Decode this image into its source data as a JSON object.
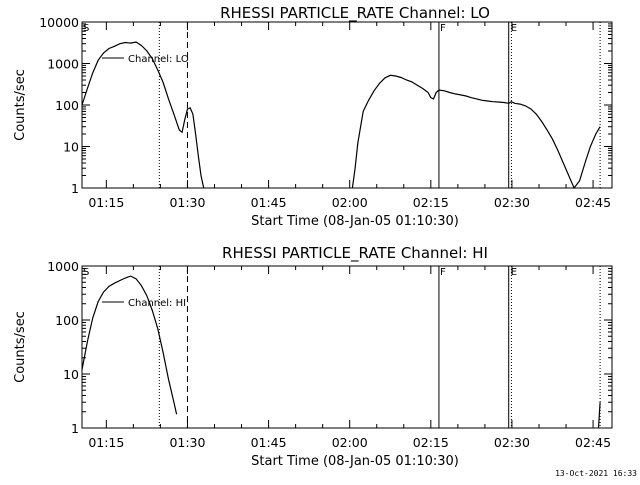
{
  "footer": {
    "timestamp": "13-Oct-2021 16:33"
  },
  "chart_data": [
    {
      "type": "line",
      "title": "RHESSI PARTICLE_RATE Channel: LO",
      "xlabel": "Start Time (08-Jan-05 01:10:30)",
      "ylabel": "Counts/sec",
      "yscale": "log",
      "xlim_minutes": [
        0,
        98
      ],
      "ylim": [
        1,
        10000
      ],
      "x_tick_labels": [
        "01:15",
        "01:30",
        "01:45",
        "02:00",
        "02:15",
        "02:30",
        "02:45"
      ],
      "x_tick_minutes": [
        4.5,
        19.5,
        34.5,
        49.5,
        64.5,
        79.5,
        94.5
      ],
      "y_tick_labels": [
        "1",
        "10",
        "100",
        "1000",
        "10000"
      ],
      "y_tick_values": [
        1,
        10,
        100,
        1000,
        10000
      ],
      "legend": "Channel: LO",
      "markers": {
        "S": "S",
        "F": "F",
        "E": "E"
      },
      "vlines": [
        {
          "x": 14.3,
          "style": "dotted"
        },
        {
          "x": 19.5,
          "style": "dashed"
        },
        {
          "x": 66.0,
          "style": "solid",
          "marker": "F"
        },
        {
          "x": 78.9,
          "style": "solid",
          "marker": "E"
        },
        {
          "x": 79.4,
          "style": "dotted"
        },
        {
          "x": 95.8,
          "style": "dotted"
        }
      ],
      "series": [
        {
          "segments": [
            [
              [
                0,
                100
              ],
              [
                1,
                250
              ],
              [
                2,
                600
              ],
              [
                3,
                1200
              ],
              [
                4,
                1800
              ],
              [
                5,
                2300
              ],
              [
                6,
                2600
              ],
              [
                7,
                3000
              ],
              [
                8,
                3200
              ],
              [
                9,
                3100
              ],
              [
                10,
                3300
              ],
              [
                11,
                2700
              ],
              [
                12,
                2000
              ],
              [
                13,
                1300
              ],
              [
                14,
                700
              ],
              [
                15,
                350
              ],
              [
                16,
                140
              ],
              [
                17,
                60
              ],
              [
                18,
                25
              ],
              [
                18.5,
                22
              ],
              [
                19,
                45
              ],
              [
                19.5,
                80
              ],
              [
                20,
                85
              ],
              [
                20.5,
                60
              ],
              [
                21,
                20
              ],
              [
                21.5,
                6
              ],
              [
                22,
                2
              ],
              [
                22.5,
                1
              ]
            ],
            [
              [
                50,
                1
              ],
              [
                50.5,
                3
              ],
              [
                51,
                12
              ],
              [
                52,
                70
              ],
              [
                53,
                130
              ],
              [
                54,
                220
              ],
              [
                55,
                330
              ],
              [
                56,
                450
              ],
              [
                57,
                520
              ],
              [
                58,
                500
              ],
              [
                59,
                460
              ],
              [
                60,
                400
              ],
              [
                61,
                360
              ],
              [
                62,
                300
              ],
              [
                63,
                250
              ],
              [
                64,
                200
              ],
              [
                64.5,
                150
              ],
              [
                65,
                140
              ],
              [
                65.5,
                200
              ],
              [
                66,
                230
              ],
              [
                67,
                220
              ],
              [
                68,
                200
              ],
              [
                69,
                185
              ],
              [
                70,
                175
              ],
              [
                71,
                165
              ],
              [
                72,
                150
              ],
              [
                73,
                140
              ],
              [
                74,
                130
              ],
              [
                75,
                125
              ],
              [
                76,
                120
              ],
              [
                77,
                118
              ],
              [
                78,
                115
              ],
              [
                78.9,
                110
              ],
              [
                79.4,
                120
              ],
              [
                80,
                110
              ],
              [
                81,
                105
              ],
              [
                82,
                95
              ],
              [
                83,
                80
              ],
              [
                84,
                60
              ],
              [
                85,
                40
              ],
              [
                86,
                25
              ],
              [
                87,
                15
              ],
              [
                88,
                8
              ],
              [
                89,
                4
              ],
              [
                90,
                2
              ],
              [
                91,
                1
              ],
              [
                92,
                1.5
              ],
              [
                93,
                4
              ],
              [
                94,
                10
              ],
              [
                95,
                20
              ],
              [
                95.8,
                30
              ]
            ]
          ]
        }
      ]
    },
    {
      "type": "line",
      "title": "RHESSI PARTICLE_RATE Channel: HI",
      "xlabel": "Start Time (08-Jan-05 01:10:30)",
      "ylabel": "Counts/sec",
      "yscale": "log",
      "xlim_minutes": [
        0,
        98
      ],
      "ylim": [
        1,
        1000
      ],
      "x_tick_labels": [
        "01:15",
        "01:30",
        "01:45",
        "02:00",
        "02:15",
        "02:30",
        "02:45"
      ],
      "x_tick_minutes": [
        4.5,
        19.5,
        34.5,
        49.5,
        64.5,
        79.5,
        94.5
      ],
      "y_tick_labels": [
        "1",
        "10",
        "100",
        "1000"
      ],
      "y_tick_values": [
        1,
        10,
        100,
        1000
      ],
      "legend": "Channel: HI",
      "markers": {
        "S": "S",
        "F": "F",
        "E": "E"
      },
      "vlines": [
        {
          "x": 14.3,
          "style": "dotted"
        },
        {
          "x": 19.5,
          "style": "dashed"
        },
        {
          "x": 66.0,
          "style": "solid",
          "marker": "F"
        },
        {
          "x": 78.9,
          "style": "solid",
          "marker": "E"
        },
        {
          "x": 79.4,
          "style": "dotted"
        },
        {
          "x": 95.8,
          "style": "dotted"
        }
      ],
      "series": [
        {
          "segments": [
            [
              [
                0,
                12
              ],
              [
                1,
                40
              ],
              [
                2,
                110
              ],
              [
                3,
                220
              ],
              [
                4,
                330
              ],
              [
                5,
                420
              ],
              [
                6,
                480
              ],
              [
                7,
                540
              ],
              [
                8,
                600
              ],
              [
                9,
                650
              ],
              [
                10,
                580
              ],
              [
                11,
                430
              ],
              [
                12,
                280
              ],
              [
                13,
                150
              ],
              [
                14,
                70
              ],
              [
                15,
                25
              ],
              [
                16,
                8
              ],
              [
                17,
                3
              ],
              [
                17.5,
                1.8
              ]
            ],
            [
              [
                95.5,
                1
              ],
              [
                95.8,
                3
              ]
            ]
          ]
        }
      ]
    }
  ]
}
